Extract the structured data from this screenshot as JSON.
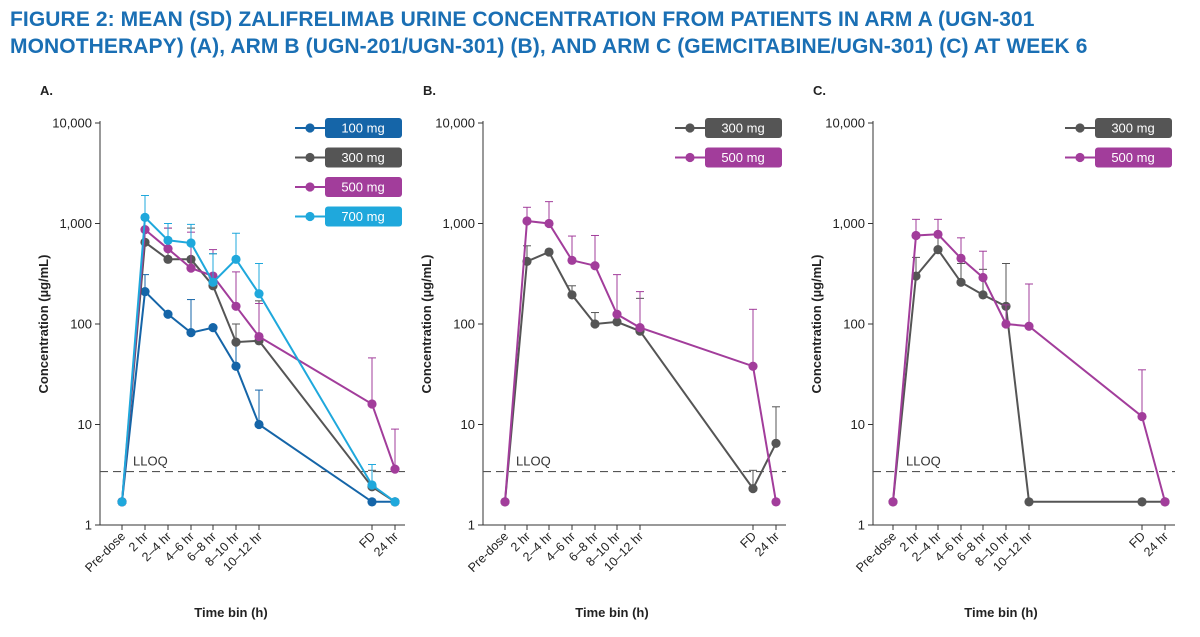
{
  "title_line1": "FIGURE 2: MEAN (SD) ZALIFRELIMAB URINE CONCENTRATION FROM PATIENTS IN ARM A (UGN-301",
  "title_line2": "MONOTHERAPY) (A), ARM B (UGN-201/UGN-301) (B), AND ARM C (GEMCITABINE/UGN-301) (C) AT WEEK 6",
  "colors": {
    "title": "#1a6fb4",
    "100 mg": "#1565a8",
    "300 mg": "#555555",
    "500 mg": "#a23d9b",
    "700 mg": "#1fa8dc"
  },
  "chart_data": [
    {
      "type": "line",
      "panel": "A.",
      "xlabel": "Time bin (h)",
      "ylabel": "Concentration (µg/mL)",
      "yscale": "log",
      "ylim": [
        1,
        10000
      ],
      "yticks": [
        "1",
        "10",
        "100",
        "1,000",
        "10,000"
      ],
      "categories": [
        "Pre-dose",
        "2 hr",
        "2–4 hr",
        "4–6 hr",
        "6–8 hr",
        "8–10 hr",
        "10–12 hr",
        "FD",
        "24 hr"
      ],
      "lloq": 3.4,
      "lloq_label": "LLOQ",
      "legend": "top-right",
      "series": [
        {
          "name": "100 mg",
          "values": [
            1.7,
            210,
            125,
            82,
            92,
            38,
            10,
            1.7,
            1.7
          ],
          "sd_upper": [
            null,
            310,
            null,
            175,
            null,
            100,
            22,
            null,
            null
          ]
        },
        {
          "name": "300 mg",
          "values": [
            1.7,
            650,
            440,
            440,
            240,
            66,
            68,
            2.4,
            1.7
          ],
          "sd_upper": [
            null,
            1100,
            900,
            900,
            500,
            100,
            170,
            3.5,
            null
          ]
        },
        {
          "name": "500 mg",
          "values": [
            1.7,
            870,
            560,
            360,
            300,
            150,
            75,
            16,
            3.6
          ],
          "sd_upper": [
            null,
            1200,
            900,
            820,
            550,
            330,
            160,
            46,
            9
          ]
        },
        {
          "name": "700 mg",
          "values": [
            1.7,
            1150,
            680,
            640,
            260,
            440,
            200,
            2.5,
            1.7
          ],
          "sd_upper": [
            null,
            1900,
            1000,
            980,
            500,
            800,
            400,
            4,
            null
          ]
        }
      ]
    },
    {
      "type": "line",
      "panel": "B.",
      "xlabel": "Time bin (h)",
      "ylabel": "Concentration (µg/mL)",
      "yscale": "log",
      "ylim": [
        1,
        10000
      ],
      "yticks": [
        "1",
        "10",
        "100",
        "1,000",
        "10,000"
      ],
      "categories": [
        "Pre-dose",
        "2 hr",
        "2–4 hr",
        "4–6 hr",
        "6–8 hr",
        "8–10 hr",
        "10–12 hr",
        "FD",
        "24 hr"
      ],
      "lloq": 3.4,
      "lloq_label": "LLOQ",
      "legend": "top-right",
      "series": [
        {
          "name": "300 mg",
          "values": [
            1.7,
            420,
            520,
            195,
            100,
            105,
            85,
            2.3,
            6.5
          ],
          "sd_upper": [
            null,
            600,
            null,
            240,
            130,
            125,
            180,
            3.5,
            15
          ]
        },
        {
          "name": "500 mg",
          "values": [
            1.7,
            1060,
            1000,
            430,
            380,
            125,
            92,
            38,
            1.7
          ],
          "sd_upper": [
            null,
            1450,
            1650,
            750,
            760,
            310,
            210,
            140,
            null
          ]
        }
      ]
    },
    {
      "type": "line",
      "panel": "C.",
      "xlabel": "Time bin (h)",
      "ylabel": "Concentration (µg/mL)",
      "yscale": "log",
      "ylim": [
        1,
        10000
      ],
      "yticks": [
        "1",
        "10",
        "100",
        "1,000",
        "10,000"
      ],
      "categories": [
        "Pre-dose",
        "2 hr",
        "2–4 hr",
        "4–6 hr",
        "6–8 hr",
        "8–10 hr",
        "10–12 hr",
        "FD",
        "24 hr"
      ],
      "lloq": 3.4,
      "lloq_label": "LLOQ",
      "legend": "top-right",
      "series": [
        {
          "name": "300 mg",
          "values": [
            1.7,
            300,
            550,
            260,
            195,
            150,
            1.7,
            1.7,
            1.7
          ],
          "sd_upper": [
            null,
            460,
            800,
            400,
            350,
            400,
            null,
            null,
            null
          ]
        },
        {
          "name": "500 mg",
          "values": [
            1.7,
            760,
            780,
            450,
            290,
            100,
            95,
            12,
            1.7
          ],
          "sd_upper": [
            null,
            1100,
            1100,
            720,
            530,
            155,
            250,
            35,
            null
          ]
        }
      ]
    }
  ]
}
